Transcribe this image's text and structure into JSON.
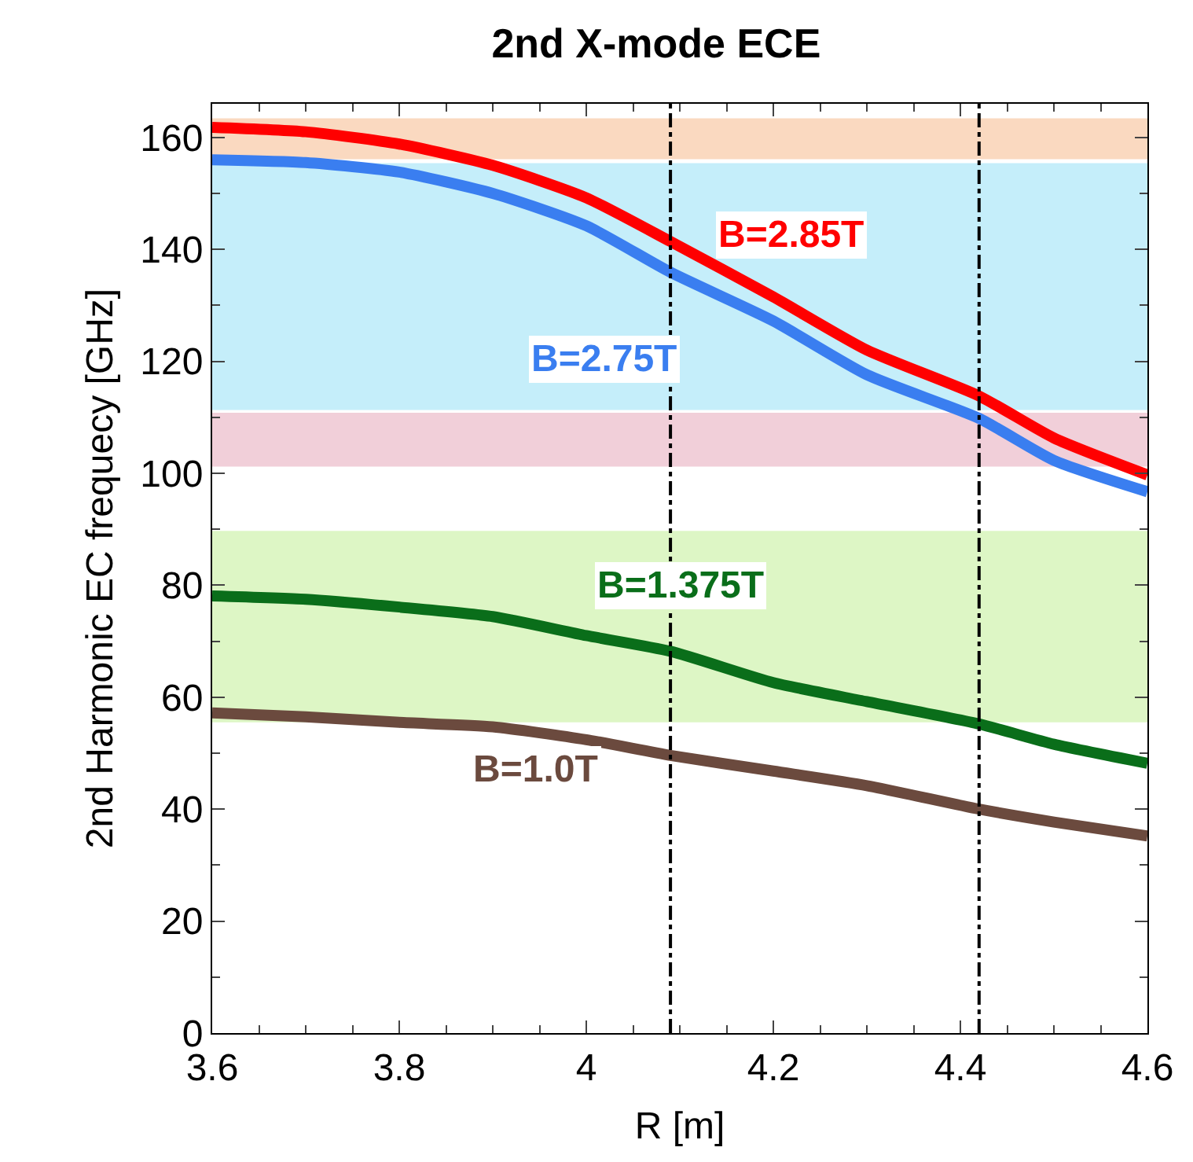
{
  "chart_data": {
    "type": "line",
    "title": "2nd X-mode ECE",
    "xlabel": "R [m]",
    "ylabel": "2nd Harmonic EC frequecy [GHz]",
    "x": [
      3.6,
      3.7,
      3.8,
      3.9,
      4.0,
      4.09,
      4.2,
      4.3,
      4.42,
      4.5,
      4.6
    ],
    "series": [
      {
        "name": "B=2.85T",
        "color": "#ff0000",
        "values": [
          161.8,
          161,
          158.8,
          155,
          149.2,
          141.4,
          131.5,
          122,
          113.8,
          106.3,
          99.7
        ]
      },
      {
        "name": "B=2.75T",
        "color": "#3a7ef0",
        "values": [
          156,
          155.5,
          153.8,
          150,
          144.2,
          135.9,
          127.2,
          117.6,
          109.8,
          102.3,
          96.7
        ]
      },
      {
        "name": "B=1.375T",
        "color": "#0a6e1a",
        "values": [
          78.1,
          77.5,
          76.1,
          74.4,
          71,
          68.2,
          62.6,
          59.2,
          55.2,
          51.6,
          48.2
        ]
      },
      {
        "name": "B=1.0T",
        "color": "#6b4a3e",
        "values": [
          57.2,
          56.5,
          55.5,
          54.7,
          52.4,
          49.6,
          46.8,
          44.2,
          40,
          37.7,
          35.2
        ]
      }
    ],
    "ref_lines": [
      {
        "axis": "x",
        "value": 4.09,
        "color": "#000000",
        "line_style": "dashed"
      },
      {
        "axis": "x",
        "value": 4.42,
        "color": "#000000",
        "line_style": "dashed"
      }
    ],
    "bands": [
      {
        "axis": "y",
        "from": 156.1,
        "to": 163.4,
        "color": "#f08030"
      },
      {
        "axis": "y",
        "from": 111.3,
        "to": 155.4,
        "color": "#40c8f0"
      },
      {
        "axis": "y",
        "from": 101.2,
        "to": 110.8,
        "color": "#d06080"
      },
      {
        "axis": "y",
        "from": 55.5,
        "to": 89.7,
        "color": "#90e040"
      }
    ],
    "xlim": [
      3.6,
      4.6
    ],
    "xticks": [
      3.6,
      3.8,
      {
        "value": 4.0,
        "label": "4"
      },
      4.2,
      4.4,
      4.6
    ],
    "ylim": [
      0,
      166
    ],
    "yticks": [
      0,
      20,
      40,
      60,
      80,
      100,
      120,
      140,
      160
    ],
    "grid": false,
    "legend": false,
    "marker": "none",
    "line_style": "solid"
  }
}
